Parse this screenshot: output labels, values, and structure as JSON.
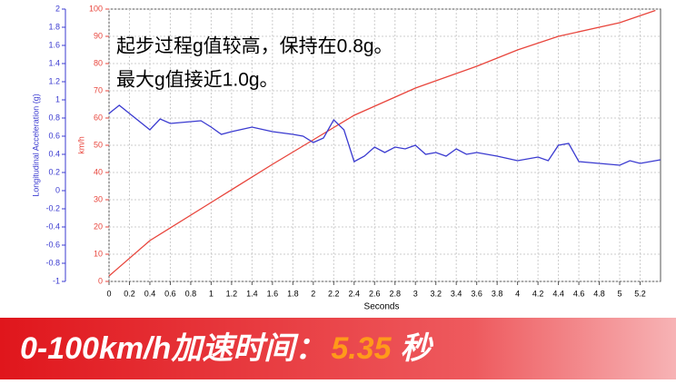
{
  "chart_data": {
    "type": "line",
    "annotations": [
      "起步过程g值较高，保持在0.8g。",
      "最大g值接近1.0g。"
    ],
    "xlabel": "Seconds",
    "ylabel": "km/h",
    "y2label": "Longitudinal Acceleration (g)",
    "xlim": [
      0,
      5.4
    ],
    "xticks": [
      0,
      0.2,
      0.4,
      0.6,
      0.8,
      1,
      1.2,
      1.4,
      1.6,
      1.8,
      2,
      2.2,
      2.4,
      2.6,
      2.8,
      3,
      3.2,
      3.4,
      3.6,
      3.8,
      4,
      4.2,
      4.4,
      4.6,
      4.8,
      5,
      5.2
    ],
    "ylim": [
      0,
      100
    ],
    "yticks": [
      0,
      10,
      20,
      30,
      40,
      50,
      60,
      70,
      80,
      90,
      100
    ],
    "y2lim": [
      -1,
      2
    ],
    "y2ticks": [
      -1,
      -0.8,
      -0.6,
      -0.4,
      -0.2,
      0,
      0.2,
      0.4,
      0.6,
      0.8,
      1,
      1.2,
      1.4,
      1.6,
      1.8,
      2
    ],
    "grid": true,
    "series": [
      {
        "color": "#e8453c",
        "x": [
          0,
          0.4,
          1,
          1.6,
          2,
          2.4,
          3,
          3.6,
          4,
          4.4,
          5,
          5.35
        ],
        "values": [
          2,
          15,
          29,
          43,
          52,
          61,
          71,
          79,
          85,
          90,
          95,
          99.5
        ]
      },
      {
        "color": "#3a3ad0",
        "axis": "y2",
        "x": [
          0,
          0.1,
          0.2,
          0.4,
          0.5,
          0.6,
          0.8,
          0.9,
          1,
          1.1,
          1.2,
          1.4,
          1.6,
          1.8,
          1.9,
          2,
          2.1,
          2.2,
          2.3,
          2.4,
          2.5,
          2.6,
          2.7,
          2.8,
          2.9,
          3,
          3.1,
          3.2,
          3.3,
          3.4,
          3.5,
          3.6,
          3.8,
          4,
          4.2,
          4.3,
          4.4,
          4.5,
          4.6,
          4.8,
          5,
          5.1,
          5.2,
          5.4
        ],
        "values": [
          0.85,
          0.94,
          0.85,
          0.67,
          0.79,
          0.74,
          0.76,
          0.77,
          0.7,
          0.62,
          0.65,
          0.7,
          0.65,
          0.62,
          0.6,
          0.53,
          0.58,
          0.78,
          0.67,
          0.32,
          0.38,
          0.48,
          0.42,
          0.48,
          0.46,
          0.5,
          0.4,
          0.42,
          0.38,
          0.46,
          0.4,
          0.42,
          0.38,
          0.33,
          0.37,
          0.33,
          0.5,
          0.52,
          0.32,
          0.3,
          0.28,
          0.33,
          0.3,
          0.34
        ]
      }
    ]
  },
  "banner": {
    "label": "0-100km/h加速时间：",
    "value": 5.35,
    "unit": "秒"
  }
}
